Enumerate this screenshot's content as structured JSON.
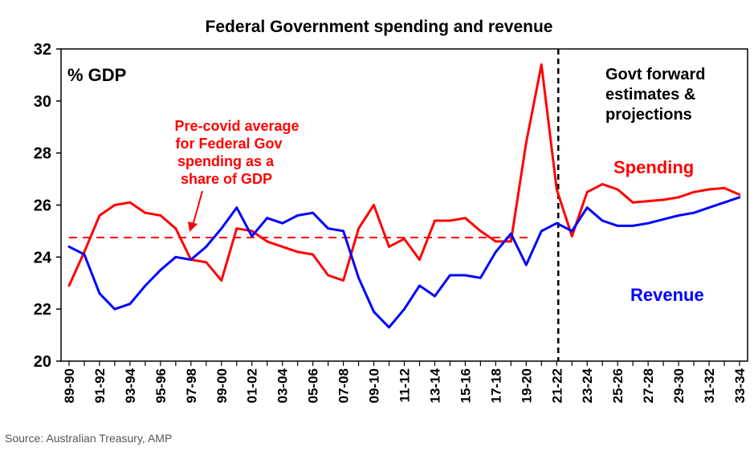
{
  "chart_data": {
    "type": "line",
    "title": "Federal Government spending and revenue",
    "ylabel": "% GDP",
    "ylim": [
      20,
      32
    ],
    "yticks": [
      20,
      22,
      24,
      26,
      28,
      30,
      32
    ],
    "categories": [
      "89-90",
      "90-91",
      "91-92",
      "92-93",
      "93-94",
      "94-95",
      "95-96",
      "96-97",
      "97-98",
      "98-99",
      "99-00",
      "00-01",
      "01-02",
      "02-03",
      "03-04",
      "04-05",
      "05-06",
      "06-07",
      "07-08",
      "08-09",
      "09-10",
      "10-11",
      "11-12",
      "12-13",
      "13-14",
      "14-15",
      "15-16",
      "16-17",
      "17-18",
      "18-19",
      "19-20",
      "20-21",
      "21-22",
      "22-23",
      "23-24",
      "24-25",
      "25-26",
      "26-27",
      "27-28",
      "28-29",
      "29-30",
      "30-31",
      "31-32",
      "32-33",
      "33-34"
    ],
    "tick_labels": [
      "89-90",
      "91-92",
      "93-94",
      "95-96",
      "97-98",
      "99-00",
      "01-02",
      "03-04",
      "05-06",
      "07-08",
      "09-10",
      "11-12",
      "13-14",
      "15-16",
      "17-18",
      "19-20",
      "21-22",
      "23-24",
      "25-26",
      "27-28",
      "29-30",
      "31-32",
      "33-34"
    ],
    "series": [
      {
        "name": "Spending",
        "color": "#ff0000",
        "values": [
          22.9,
          24.2,
          25.6,
          26.0,
          26.1,
          25.7,
          25.6,
          25.1,
          23.9,
          23.8,
          23.1,
          25.1,
          25.0,
          24.6,
          24.4,
          24.2,
          24.1,
          23.3,
          23.1,
          25.1,
          26.0,
          24.4,
          24.7,
          23.9,
          25.4,
          25.4,
          25.5,
          25.0,
          24.6,
          24.6,
          28.4,
          31.4,
          26.6,
          24.8,
          26.5,
          26.8,
          26.6,
          26.1,
          26.15,
          26.2,
          26.3,
          26.5,
          26.6,
          26.65,
          26.4
        ]
      },
      {
        "name": "Revenue",
        "color": "#0000ff",
        "values": [
          24.4,
          24.1,
          22.6,
          22.0,
          22.2,
          22.9,
          23.5,
          24.0,
          23.9,
          24.4,
          25.1,
          25.9,
          24.8,
          25.5,
          25.3,
          25.6,
          25.7,
          25.1,
          25.0,
          23.2,
          21.9,
          21.3,
          22.0,
          22.9,
          22.5,
          23.3,
          23.3,
          23.2,
          24.2,
          24.9,
          23.7,
          25.0,
          25.3,
          25.0,
          25.9,
          25.4,
          25.2,
          25.2,
          25.3,
          25.45,
          25.6,
          25.7,
          25.9,
          26.1,
          26.3
        ]
      }
    ],
    "precovid_average": {
      "value": 24.75,
      "color": "#ff0000",
      "style": "dashed",
      "from": "89-90",
      "to": "19-20"
    },
    "forecast_divider": {
      "at": "21-22",
      "style": "dashed",
      "color": "#000000"
    },
    "annotations": {
      "precovid": [
        "Pre-covid average",
        "for Federal Gov",
        "spending as a",
        "share of GDP"
      ],
      "forward": [
        "Govt forward",
        "estimates &",
        "projections"
      ],
      "spending_label": "Spending",
      "revenue_label": "Revenue"
    },
    "source": "Source: Australian Treasury, AMP",
    "legend": "none",
    "grid": false
  }
}
